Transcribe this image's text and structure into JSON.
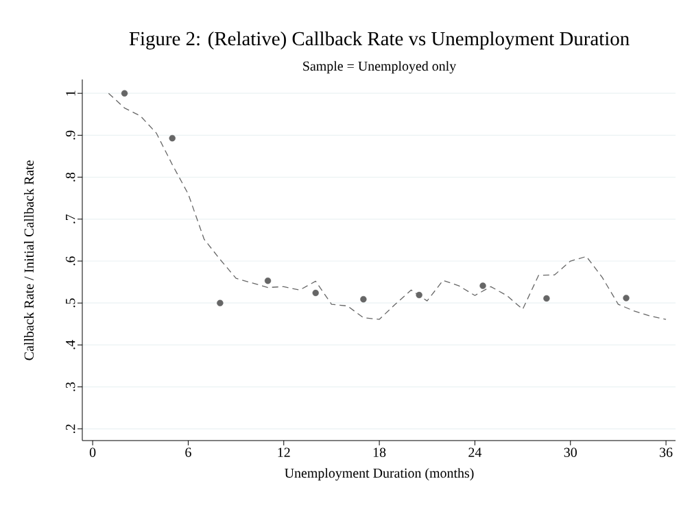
{
  "chart_data": {
    "type": "scatter",
    "title": "Figure 2: (Relative) Callback Rate vs Unemployment Duration",
    "subtitle": "Sample = Unemployed only",
    "xlabel": "Unemployment Duration (months)",
    "ylabel": "Callback Rate / Initial Callback Rate",
    "xlim": [
      -0.65,
      36.6
    ],
    "ylim": [
      0.172,
      1.033
    ],
    "xticks": [
      0,
      6,
      12,
      18,
      24,
      30,
      36
    ],
    "yticks": [
      {
        "value": 0.2,
        "label": ".2"
      },
      {
        "value": 0.3,
        "label": ".3"
      },
      {
        "value": 0.4,
        "label": ".4"
      },
      {
        "value": 0.5,
        "label": ".5"
      },
      {
        "value": 0.6,
        "label": ".6"
      },
      {
        "value": 0.7,
        "label": ".7"
      },
      {
        "value": 0.8,
        "label": ".8"
      },
      {
        "value": 0.9,
        "label": ".9"
      },
      1
    ],
    "grid": "y",
    "marker": "circle",
    "series": [
      {
        "color": "#666666",
        "x": [
          2,
          5,
          8,
          11,
          14,
          17,
          20.5,
          24.5,
          28.5,
          33.5
        ],
        "values": [
          1.0,
          0.893,
          0.5,
          0.553,
          0.524,
          0.509,
          0.519,
          0.541,
          0.511,
          0.512
        ]
      },
      {
        "type": "line",
        "marker": "none",
        "line_style": "dashed",
        "color": "#666666",
        "x": [
          1,
          2,
          3,
          4,
          5,
          6,
          7,
          8,
          9,
          10,
          11,
          12,
          13,
          14,
          15,
          16,
          17,
          18,
          19,
          20,
          21,
          22,
          23,
          24,
          25,
          26,
          27,
          28,
          29,
          30,
          31,
          32,
          33,
          34,
          35,
          36
        ],
        "values": [
          1.0,
          0.965,
          0.946,
          0.905,
          0.83,
          0.76,
          0.652,
          0.604,
          0.559,
          0.548,
          0.537,
          0.539,
          0.531,
          0.552,
          0.497,
          0.493,
          0.465,
          0.461,
          0.497,
          0.531,
          0.505,
          0.554,
          0.541,
          0.518,
          0.539,
          0.518,
          0.485,
          0.566,
          0.567,
          0.6,
          0.611,
          0.561,
          0.497,
          0.481,
          0.469,
          0.461
        ]
      }
    ]
  }
}
